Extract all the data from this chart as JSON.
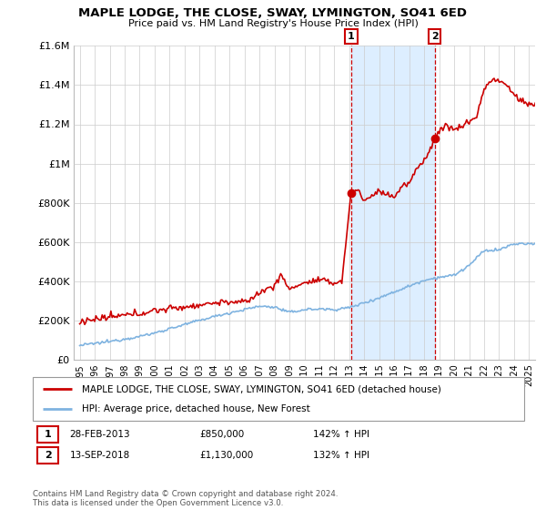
{
  "title": "MAPLE LODGE, THE CLOSE, SWAY, LYMINGTON, SO41 6ED",
  "subtitle": "Price paid vs. HM Land Registry's House Price Index (HPI)",
  "ylim": [
    0,
    1600000
  ],
  "yticks": [
    0,
    200000,
    400000,
    600000,
    800000,
    1000000,
    1200000,
    1400000,
    1600000
  ],
  "ytick_labels": [
    "£0",
    "£200K",
    "£400K",
    "£600K",
    "£800K",
    "£1M",
    "£1.2M",
    "£1.4M",
    "£1.6M"
  ],
  "hpi_color": "#7fb3e0",
  "price_color": "#cc0000",
  "vline_color": "#cc0000",
  "shade_color": "#ddeeff",
  "legend_label_price": "MAPLE LODGE, THE CLOSE, SWAY, LYMINGTON, SO41 6ED (detached house)",
  "legend_label_hpi": "HPI: Average price, detached house, New Forest",
  "sale1_date_num": 2013.12,
  "sale1_price": 850000,
  "sale2_date_num": 2018.7,
  "sale2_price": 1130000,
  "footer": "Contains HM Land Registry data © Crown copyright and database right 2024.\nThis data is licensed under the Open Government Licence v3.0.",
  "background_color": "#ffffff",
  "grid_color": "#cccccc",
  "xlim_start": 1994.6,
  "xlim_end": 2025.4,
  "hpi_anchors_x": [
    1995,
    1996,
    1997,
    1998,
    1999,
    2000,
    2001,
    2002,
    2003,
    2004,
    2005,
    2006,
    2007,
    2008,
    2009,
    2010,
    2011,
    2012,
    2013,
    2014,
    2015,
    2016,
    2017,
    2018,
    2019,
    2020,
    2021,
    2022,
    2023,
    2024,
    2025
  ],
  "hpi_anchors_y": [
    72000,
    82000,
    92000,
    105000,
    118000,
    135000,
    158000,
    178000,
    200000,
    220000,
    238000,
    255000,
    272000,
    268000,
    240000,
    255000,
    258000,
    255000,
    265000,
    290000,
    315000,
    345000,
    375000,
    405000,
    420000,
    430000,
    480000,
    555000,
    560000,
    590000,
    590000
  ],
  "price_anchors_x": [
    1995,
    1996,
    1997,
    1998,
    1999,
    2000,
    2001,
    2002,
    2003,
    2004,
    2005,
    2006,
    2007,
    2008,
    2008.5,
    2009,
    2009.5,
    2010,
    2011,
    2012,
    2012.5,
    2013.12,
    2013.5,
    2014,
    2015,
    2016,
    2016.5,
    2017,
    2017.5,
    2018,
    2018.5,
    2018.7,
    2019,
    2019.5,
    2020,
    2020.5,
    2021,
    2021.5,
    2022,
    2022.5,
    2023,
    2023.5,
    2024,
    2024.5,
    2025
  ],
  "price_anchors_y": [
    195000,
    205000,
    215000,
    225000,
    235000,
    250000,
    260000,
    268000,
    278000,
    290000,
    295000,
    290000,
    340000,
    380000,
    430000,
    355000,
    380000,
    390000,
    405000,
    390000,
    400000,
    850000,
    870000,
    810000,
    860000,
    830000,
    880000,
    900000,
    970000,
    1020000,
    1090000,
    1130000,
    1160000,
    1200000,
    1170000,
    1190000,
    1215000,
    1240000,
    1380000,
    1430000,
    1420000,
    1400000,
    1350000,
    1320000,
    1300000
  ]
}
